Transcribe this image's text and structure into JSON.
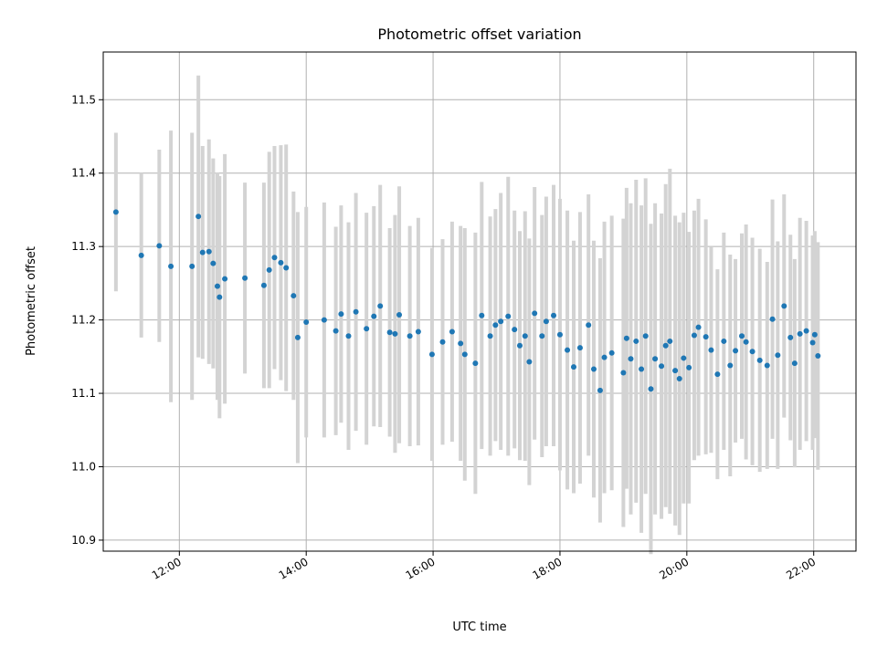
{
  "chart_data": {
    "type": "scatter",
    "title": "Photometric offset variation",
    "xlabel": "UTC time",
    "ylabel": "Photometric offset",
    "x_unit": "hours UTC",
    "xlim": [
      "10:48",
      "22:40"
    ],
    "ylim": [
      10.885,
      11.565
    ],
    "x_ticks": [
      "12:00",
      "14:00",
      "16:00",
      "18:00",
      "20:00",
      "22:00"
    ],
    "y_ticks": [
      "10.9",
      "11.0",
      "11.1",
      "11.2",
      "11.3",
      "11.4",
      "11.5"
    ],
    "grid": true,
    "colors": {
      "points": "#1f77b4",
      "errorbars": "#d3d3d3",
      "grid": "#b0b0b0"
    },
    "series": [
      {
        "x": [
          "11:00",
          "11:24",
          "11:41",
          "11:52",
          "12:12",
          "12:18",
          "12:22",
          "12:28",
          "12:32",
          "12:36",
          "12:38",
          "12:43",
          "13:02",
          "13:20",
          "13:25",
          "13:30",
          "13:36",
          "13:41",
          "13:48",
          "13:52",
          "14:00",
          "14:17",
          "14:28",
          "14:33",
          "14:40",
          "14:47",
          "14:57",
          "15:04",
          "15:10",
          "15:19",
          "15:24",
          "15:28",
          "15:38",
          "15:46",
          "15:59",
          "16:09",
          "16:18",
          "16:26",
          "16:30",
          "16:40",
          "16:46",
          "16:54",
          "16:59",
          "17:04",
          "17:11",
          "17:17",
          "17:22",
          "17:27",
          "17:31",
          "17:36",
          "17:43",
          "17:47",
          "17:54",
          "18:00",
          "18:07",
          "18:13",
          "18:19",
          "18:27",
          "18:32",
          "18:38",
          "18:42",
          "18:49",
          "19:00",
          "19:03",
          "19:07",
          "19:12",
          "19:17",
          "19:21",
          "19:26",
          "19:30",
          "19:36",
          "19:40",
          "19:44",
          "19:49",
          "19:53",
          "19:57",
          "20:02",
          "20:07",
          "20:11",
          "20:18",
          "20:23",
          "20:29",
          "20:35",
          "20:41",
          "20:46",
          "20:52",
          "20:56",
          "21:02",
          "21:09",
          "21:16",
          "21:21",
          "21:26",
          "21:32",
          "21:38",
          "21:42",
          "21:47",
          "21:53",
          "21:59",
          "22:01",
          "22:04"
        ],
        "y": [
          11.347,
          11.288,
          11.301,
          11.273,
          11.273,
          11.341,
          11.292,
          11.293,
          11.277,
          11.246,
          11.231,
          11.256,
          11.257,
          11.247,
          11.268,
          11.285,
          11.278,
          11.271,
          11.233,
          11.176,
          11.197,
          11.2,
          11.185,
          11.208,
          11.178,
          11.211,
          11.188,
          11.205,
          11.219,
          11.183,
          11.181,
          11.207,
          11.178,
          11.184,
          11.153,
          11.17,
          11.184,
          11.168,
          11.153,
          11.141,
          11.206,
          11.178,
          11.193,
          11.198,
          11.205,
          11.187,
          11.165,
          11.178,
          11.143,
          11.209,
          11.178,
          11.198,
          11.206,
          11.18,
          11.159,
          11.136,
          11.162,
          11.193,
          11.133,
          11.104,
          11.149,
          11.155,
          11.128,
          11.175,
          11.147,
          11.171,
          11.133,
          11.178,
          11.106,
          11.147,
          11.137,
          11.165,
          11.171,
          11.131,
          11.12,
          11.148,
          11.135,
          11.179,
          11.19,
          11.177,
          11.159,
          11.126,
          11.171,
          11.138,
          11.158,
          11.178,
          11.17,
          11.157,
          11.145,
          11.138,
          11.201,
          11.152,
          11.219,
          11.176,
          11.141,
          11.181,
          11.185,
          11.169,
          11.18,
          11.151
        ],
        "yerr": [
          0.108,
          0.112,
          0.131,
          0.185,
          0.182,
          0.192,
          0.145,
          0.153,
          0.143,
          0.155,
          0.165,
          0.17,
          0.13,
          0.14,
          0.161,
          0.152,
          0.16,
          0.168,
          0.142,
          0.171,
          0.157,
          0.16,
          0.142,
          0.148,
          0.155,
          0.162,
          0.158,
          0.15,
          0.165,
          0.142,
          0.162,
          0.175,
          0.15,
          0.155,
          0.145,
          0.14,
          0.15,
          0.16,
          0.172,
          0.178,
          0.182,
          0.163,
          0.158,
          0.175,
          0.19,
          0.162,
          0.156,
          0.17,
          0.168,
          0.172,
          0.165,
          0.17,
          0.178,
          0.185,
          0.19,
          0.172,
          0.185,
          0.178,
          0.175,
          0.18,
          0.185,
          0.187,
          0.21,
          0.205,
          0.212,
          0.22,
          0.223,
          0.215,
          0.225,
          0.212,
          0.208,
          0.22,
          0.235,
          0.211,
          0.213,
          0.198,
          0.185,
          0.17,
          0.175,
          0.16,
          0.14,
          0.143,
          0.148,
          0.151,
          0.125,
          0.14,
          0.16,
          0.155,
          0.152,
          0.141,
          0.163,
          0.155,
          0.152,
          0.14,
          0.142,
          0.158,
          0.15,
          0.146,
          0.141,
          0.155
        ]
      }
    ]
  }
}
